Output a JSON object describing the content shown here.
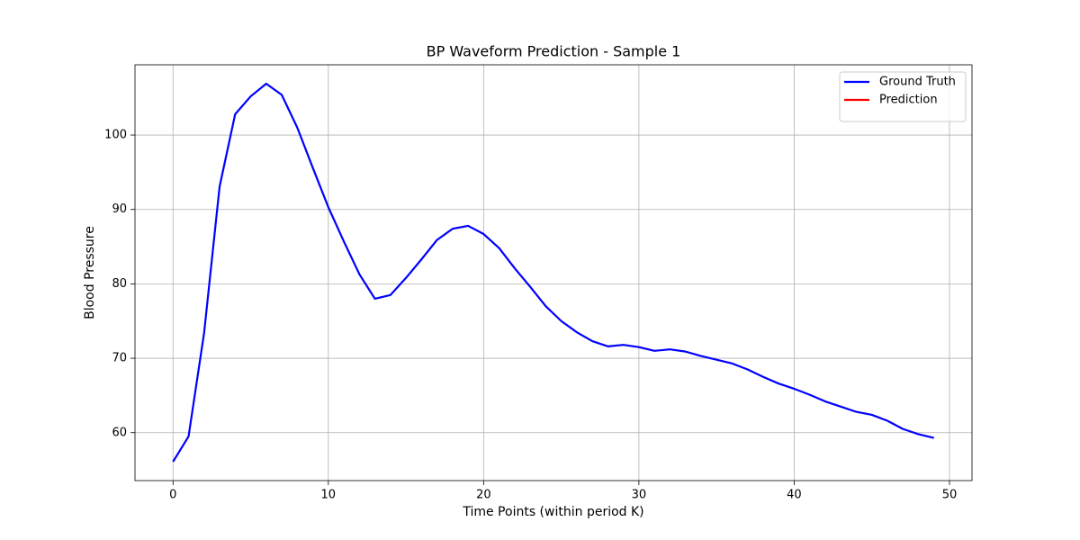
{
  "chart_data": {
    "type": "line",
    "title": "BP Waveform Prediction - Sample 1",
    "xlabel": "Time Points (within period K)",
    "ylabel": "Blood Pressure",
    "x": [
      0,
      1,
      2,
      3,
      4,
      5,
      6,
      7,
      8,
      9,
      10,
      11,
      12,
      13,
      14,
      15,
      16,
      17,
      18,
      19,
      20,
      21,
      22,
      23,
      24,
      25,
      26,
      27,
      28,
      29,
      30,
      31,
      32,
      33,
      34,
      35,
      36,
      37,
      38,
      39,
      40,
      41,
      42,
      43,
      44,
      45,
      46,
      47,
      48,
      49
    ],
    "series": [
      {
        "name": "Ground Truth",
        "color": "#0000ff",
        "values": [
          56.1,
          59.5,
          73.4,
          93.1,
          102.8,
          105.2,
          106.9,
          105.4,
          101.0,
          95.6,
          90.3,
          85.7,
          81.3,
          78.0,
          78.5,
          80.8,
          83.3,
          85.9,
          87.4,
          87.8,
          86.7,
          84.8,
          82.1,
          79.6,
          77.0,
          75.0,
          73.5,
          72.3,
          71.6,
          71.8,
          71.5,
          71.0,
          71.2,
          70.9,
          70.3,
          69.8,
          69.3,
          68.5,
          67.5,
          66.6,
          65.9,
          65.1,
          64.2,
          63.5,
          62.8,
          62.4,
          61.6,
          60.5,
          59.8,
          59.3
        ]
      },
      {
        "name": "Prediction",
        "color": "#ff0000",
        "values": [
          null,
          null,
          null,
          null,
          null,
          null,
          null,
          null,
          null,
          null,
          null,
          null,
          null,
          null,
          null,
          null,
          null,
          null,
          null,
          null,
          null,
          null,
          null,
          null,
          null,
          null,
          null,
          null,
          null,
          null,
          null,
          null,
          null,
          null,
          null,
          null,
          null,
          null,
          null,
          null,
          null,
          null,
          null,
          null,
          null,
          null,
          null,
          null,
          null,
          null
        ]
      }
    ],
    "xlim": [
      -2.45,
      51.45
    ],
    "xticks": [
      0,
      10,
      20,
      30,
      40,
      50
    ],
    "ylim": [
      53.56,
      109.44
    ],
    "yticks": [
      60,
      70,
      80,
      90,
      100
    ],
    "grid": true,
    "legend": "upper right"
  }
}
